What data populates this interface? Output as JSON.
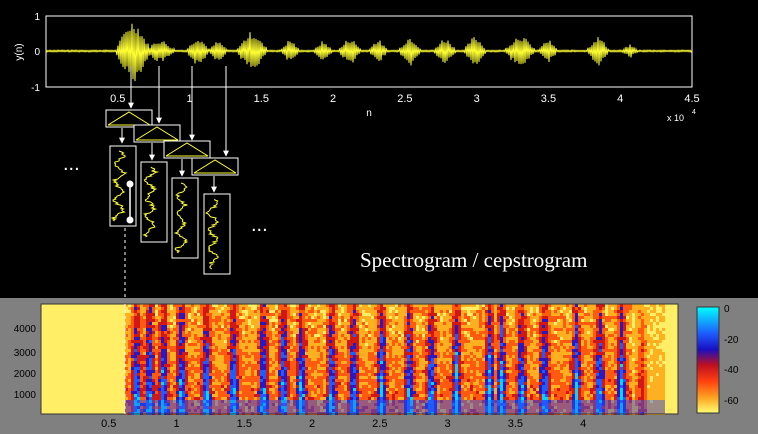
{
  "waveform": {
    "ylabel": "y(n)",
    "xlabel": "n",
    "exponent_label": "x 10",
    "exponent_power": "4",
    "y_ticks": [
      "1",
      "0",
      "-1"
    ],
    "x_ticks": [
      "0.5",
      "1",
      "1.5",
      "2",
      "2.5",
      "3",
      "3.5",
      "4",
      "4.5"
    ],
    "color": "#ffff33"
  },
  "annotations": {
    "title": "Spectrogram / cepstrogram",
    "ellipsis_left": "...",
    "ellipsis_right": "..."
  },
  "spectrogram": {
    "y_ticks": [
      "4000",
      "3000",
      "2000",
      "1000"
    ],
    "x_ticks": [
      "0.5",
      "1",
      "1.5",
      "2",
      "2.5",
      "3",
      "3.5",
      "4"
    ],
    "colorbar_ticks": [
      "0",
      "-20",
      "-40",
      "-60"
    ]
  },
  "colors": {
    "background": "#000000",
    "panel": "#808080",
    "signal": "#ffff33"
  }
}
